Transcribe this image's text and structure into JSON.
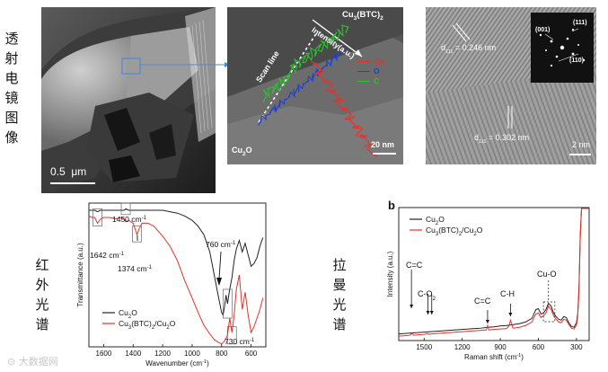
{
  "section_labels": {
    "tem": [
      "透",
      "射",
      "电",
      "镜",
      "图",
      "像"
    ],
    "ir": [
      "红",
      "外",
      "光",
      "谱"
    ],
    "raman": [
      "拉",
      "曼",
      "光",
      "谱"
    ]
  },
  "tem_overview": {
    "scale_bar": "0.5  μm"
  },
  "tem_linescan": {
    "title": "Cu",
    "title_sub": "3",
    "title_tail": "(BTC)",
    "title_sub2": "2",
    "intensity_label": "Intensity(a.u.)",
    "scan_line_label": "Scan line",
    "legend": [
      {
        "name": "Cu",
        "color": "#e8302b"
      },
      {
        "name": "O",
        "color": "#1f3fd6"
      },
      {
        "name": "C",
        "color": "#29c42b"
      }
    ],
    "corner_label": "Cu",
    "corner_sub": "2",
    "corner_tail": "O",
    "scale_bar": "20 nm"
  },
  "tem_hrtem": {
    "d1": "d",
    "d1_sub": "111",
    "d1_value": " = 0.246 nm",
    "d2": "d",
    "d2_sub": "111",
    "d2_value": " = 0.302 nm",
    "saed_labels": [
      "(001)",
      "(111)",
      "(110)"
    ],
    "scale_bar": "2 nm"
  },
  "chart_data": [
    {
      "type": "line",
      "title": "",
      "xlabel": "Wavenumber (cm",
      "xlabel_sup": "-1",
      "xlabel_tail": ")",
      "ylabel": "Transmittance (a.u.)",
      "xlim": [
        1700,
        500
      ],
      "x_reversed": true,
      "x_ticks": [
        1600,
        1400,
        1200,
        1000,
        800,
        600
      ],
      "legend_position": "bottom-left",
      "series": [
        {
          "name": "Cu",
          "name_sub": "2",
          "name_tail": "O",
          "color": "#222222",
          "x": [
            1700,
            1680,
            1660,
            1642,
            1620,
            1600,
            1560,
            1520,
            1480,
            1460,
            1450,
            1430,
            1400,
            1380,
            1374,
            1360,
            1340,
            1300,
            1260,
            1200,
            1150,
            1100,
            1050,
            1000,
            960,
            920,
            880,
            850,
            820,
            800,
            790,
            780,
            770,
            760,
            745,
            730,
            715,
            700,
            680,
            660,
            640,
            620,
            600,
            580,
            560,
            540,
            520
          ],
          "y": [
            95,
            95,
            95,
            94,
            95,
            95,
            95,
            95,
            95,
            95,
            96,
            95,
            95,
            95,
            95,
            95,
            95,
            95,
            95,
            95,
            94,
            93,
            91,
            88,
            84,
            78,
            66,
            50,
            34,
            24,
            22,
            28,
            36,
            30,
            40,
            48,
            60,
            68,
            74,
            66,
            72,
            64,
            56,
            58,
            62,
            70,
            76
          ]
        },
        {
          "name": "Cu",
          "name_sub": "3",
          "name_tail": "(BTC)",
          "name_sub2": "2",
          "name_tail2": "/Cu",
          "name_sub3": "2",
          "name_tail3": "O",
          "color": "#e8302b",
          "x": [
            1700,
            1680,
            1660,
            1642,
            1620,
            1600,
            1560,
            1520,
            1480,
            1460,
            1450,
            1430,
            1400,
            1380,
            1374,
            1360,
            1340,
            1300,
            1260,
            1200,
            1150,
            1100,
            1050,
            1000,
            960,
            920,
            880,
            850,
            820,
            800,
            790,
            780,
            770,
            760,
            745,
            730,
            715,
            700,
            680,
            660,
            640,
            620,
            600,
            580,
            560,
            540,
            520
          ],
          "y": [
            91,
            90,
            90,
            86,
            89,
            90,
            90,
            89,
            90,
            89,
            87,
            88,
            86,
            80,
            78,
            82,
            86,
            86,
            84,
            77,
            70,
            60,
            46,
            34,
            24,
            15,
            9,
            5,
            3,
            2,
            3,
            4,
            6,
            8,
            20,
            10,
            22,
            40,
            50,
            26,
            38,
            22,
            10,
            14,
            20,
            26,
            34
          ]
        }
      ],
      "annotations": [
        {
          "text": "1450 cm",
          "sup": "-1"
        },
        {
          "text": "1642 cm",
          "sup": "-1"
        },
        {
          "text": "1374 cm",
          "sup": "-1"
        },
        {
          "text": "760 cm",
          "sup": "-1"
        },
        {
          "text": "730 cm",
          "sup": "-1"
        }
      ]
    },
    {
      "type": "line",
      "panel_label": "b",
      "title": "",
      "xlabel": "Raman shift (cm",
      "xlabel_sup": "-1",
      "xlabel_tail": ")",
      "ylabel": "Intensity (a.u.)",
      "xlim": [
        1700,
        200
      ],
      "x_reversed": true,
      "x_ticks": [
        1500,
        1200,
        900,
        600,
        300
      ],
      "legend_position": "top-left",
      "series": [
        {
          "name": "Cu",
          "name_sub": "2",
          "name_tail": "O",
          "color": "#222222",
          "x": [
            1700,
            1650,
            1600,
            1550,
            1500,
            1450,
            1400,
            1350,
            1300,
            1250,
            1200,
            1150,
            1100,
            1050,
            1000,
            950,
            900,
            850,
            800,
            750,
            700,
            650,
            620,
            600,
            580,
            560,
            540,
            520,
            500,
            480,
            460,
            440,
            420,
            400,
            380,
            360,
            340,
            320,
            300,
            290,
            280,
            270,
            260,
            250,
            240,
            230,
            220,
            210,
            200
          ],
          "y": [
            15,
            16,
            17,
            18,
            19,
            20,
            21,
            22,
            23,
            24,
            25,
            26,
            27,
            28,
            30,
            31,
            33,
            34,
            36,
            38,
            42,
            50,
            70,
            72,
            60,
            62,
            70,
            84,
            78,
            62,
            54,
            48,
            46,
            54,
            52,
            40,
            32,
            30,
            40,
            60,
            120,
            240,
            300,
            300,
            300,
            300,
            300,
            300,
            300
          ]
        },
        {
          "name": "Cu",
          "name_sub": "3",
          "name_tail": "(BTC)",
          "name_sub2": "2",
          "name_tail2": "/Cu",
          "name_sub3": "2",
          "name_tail3": "O",
          "color": "#e8302b",
          "x": [
            1700,
            1650,
            1610,
            1600,
            1580,
            1550,
            1500,
            1470,
            1460,
            1440,
            1400,
            1350,
            1300,
            1250,
            1200,
            1150,
            1100,
            1050,
            1010,
            1000,
            990,
            950,
            900,
            850,
            830,
            820,
            800,
            750,
            700,
            650,
            620,
            600,
            580,
            560,
            540,
            520,
            500,
            480,
            460,
            440,
            420,
            400,
            380,
            360,
            340,
            320,
            300,
            290,
            280,
            270,
            260,
            250,
            240,
            230,
            220,
            210,
            200
          ],
          "y": [
            10,
            11,
            12,
            16,
            12,
            13,
            14,
            16,
            14,
            15,
            16,
            17,
            18,
            19,
            20,
            21,
            22,
            23,
            24,
            34,
            24,
            25,
            26,
            27,
            34,
            46,
            28,
            30,
            34,
            42,
            60,
            62,
            52,
            56,
            62,
            78,
            70,
            56,
            48,
            42,
            40,
            48,
            46,
            36,
            28,
            26,
            34,
            54,
            110,
            230,
            300,
            300,
            300,
            300,
            300,
            300,
            300
          ]
        }
      ],
      "annotations": [
        {
          "text": "C=C"
        },
        {
          "text": "C-O",
          "sub": "2"
        },
        {
          "text": "C=C"
        },
        {
          "text": "C-H"
        },
        {
          "text": "Cu-O"
        }
      ]
    }
  ]
}
